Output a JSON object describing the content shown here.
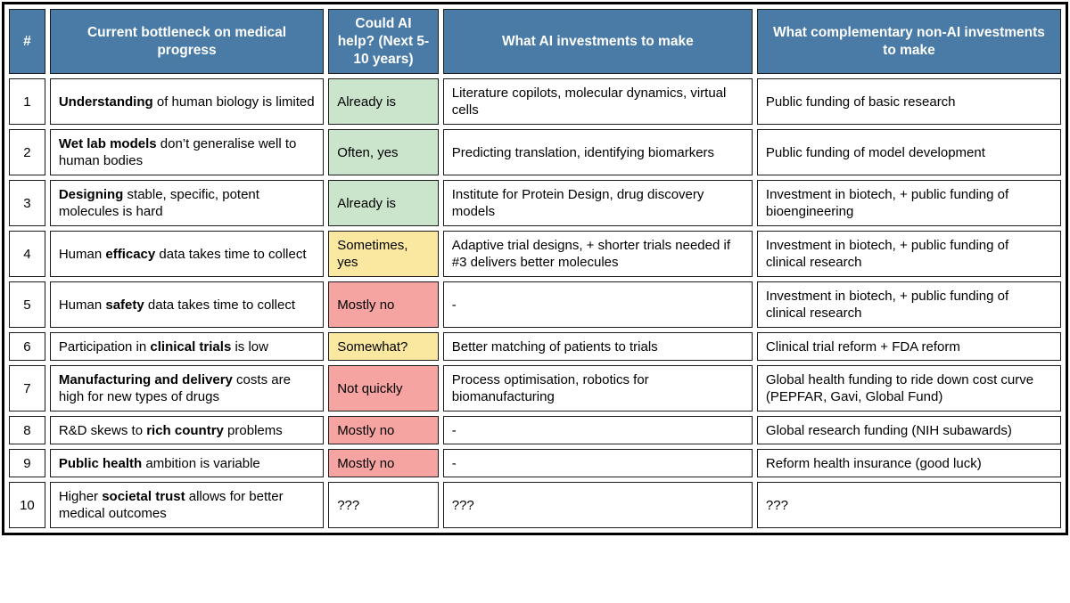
{
  "colors": {
    "header_bg": "#4a7ba6",
    "header_text": "#ffffff",
    "green": "#cbe5cd",
    "yellow": "#fae8a0",
    "red": "#f5a4a2",
    "border": "#1a1a1a"
  },
  "table": {
    "columns": [
      {
        "label": "#"
      },
      {
        "label": "Current bottleneck on medical progress"
      },
      {
        "label": "Could AI help? (Next 5-10 years)"
      },
      {
        "label": "What AI investments to make"
      },
      {
        "label": "What complementary non-AI investments to make"
      }
    ],
    "rows": [
      {
        "num": "1",
        "size": "tall",
        "bottleneck": [
          {
            "text": "Understanding",
            "bold": true
          },
          {
            "text": " of human biology is limited",
            "bold": false
          }
        ],
        "ai_help": {
          "text": "Already is",
          "status": "green"
        },
        "ai_investments": "Literature copilots, molecular dynamics, virtual cells",
        "non_ai_investments": "Public funding of basic research"
      },
      {
        "num": "2",
        "size": "tall",
        "bottleneck": [
          {
            "text": "Wet lab models",
            "bold": true
          },
          {
            "text": " don’t generalise well to human bodies",
            "bold": false
          }
        ],
        "ai_help": {
          "text": "Often, yes",
          "status": "green"
        },
        "ai_investments": "Predicting translation, identifying biomarkers",
        "non_ai_investments": "Public funding of model development"
      },
      {
        "num": "3",
        "size": "tall",
        "bottleneck": [
          {
            "text": "Designing",
            "bold": true
          },
          {
            "text": " stable, specific, potent molecules is hard",
            "bold": false
          }
        ],
        "ai_help": {
          "text": "Already is",
          "status": "green"
        },
        "ai_investments": "Institute for Protein Design, drug discovery models",
        "non_ai_investments": "Investment in biotech, + public funding of bioengineering"
      },
      {
        "num": "4",
        "size": "tall",
        "bottleneck": [
          {
            "text": "Human ",
            "bold": false
          },
          {
            "text": "efficacy",
            "bold": true
          },
          {
            "text": " data takes time to collect",
            "bold": false
          }
        ],
        "ai_help": {
          "text": "Sometimes, yes",
          "status": "yellow"
        },
        "ai_investments": "Adaptive trial designs, + shorter trials needed if #3 delivers better molecules",
        "non_ai_investments": "Investment in biotech, + public funding of clinical research"
      },
      {
        "num": "5",
        "size": "tall",
        "bottleneck": [
          {
            "text": "Human ",
            "bold": false
          },
          {
            "text": "safety",
            "bold": true
          },
          {
            "text": " data takes time to collect",
            "bold": false
          }
        ],
        "ai_help": {
          "text": "Mostly no",
          "status": "red"
        },
        "ai_investments": "-",
        "non_ai_investments": "Investment in biotech, + public funding of clinical research"
      },
      {
        "num": "6",
        "size": "short",
        "bottleneck": [
          {
            "text": "Participation in ",
            "bold": false
          },
          {
            "text": "clinical trials",
            "bold": true
          },
          {
            "text": " is low",
            "bold": false
          }
        ],
        "ai_help": {
          "text": "Somewhat?",
          "status": "yellow"
        },
        "ai_investments": "Better matching of patients to trials",
        "non_ai_investments": "Clinical trial reform + FDA reform"
      },
      {
        "num": "7",
        "size": "tall",
        "bottleneck": [
          {
            "text": "Manufacturing and delivery",
            "bold": true
          },
          {
            "text": " costs are high for new types of drugs",
            "bold": false
          }
        ],
        "ai_help": {
          "text": "Not quickly",
          "status": "red"
        },
        "ai_investments": "Process optimisation, robotics for biomanufacturing",
        "non_ai_investments": "Global health funding to ride down cost curve (PEPFAR, Gavi, Global Fund)"
      },
      {
        "num": "8",
        "size": "short",
        "bottleneck": [
          {
            "text": "R&D skews to ",
            "bold": false
          },
          {
            "text": "rich country",
            "bold": true
          },
          {
            "text": " problems",
            "bold": false
          }
        ],
        "ai_help": {
          "text": "Mostly no",
          "status": "red"
        },
        "ai_investments": "-",
        "non_ai_investments": "Global research funding (NIH subawards)"
      },
      {
        "num": "9",
        "size": "short",
        "bottleneck": [
          {
            "text": "Public health",
            "bold": true
          },
          {
            "text": " ambition is variable",
            "bold": false
          }
        ],
        "ai_help": {
          "text": "Mostly no",
          "status": "red"
        },
        "ai_investments": "-",
        "non_ai_investments": "Reform health insurance (good luck)"
      },
      {
        "num": "10",
        "size": "tall",
        "bottleneck": [
          {
            "text": "Higher ",
            "bold": false
          },
          {
            "text": "societal trust",
            "bold": true
          },
          {
            "text": " allows for better medical outcomes",
            "bold": false
          }
        ],
        "ai_help": {
          "text": "???",
          "status": "none"
        },
        "ai_investments": "???",
        "non_ai_investments": "???"
      }
    ]
  }
}
